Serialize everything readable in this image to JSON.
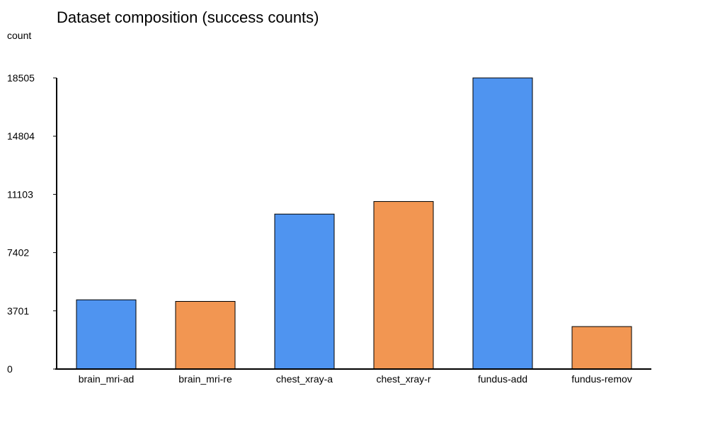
{
  "chart_data": {
    "type": "bar",
    "title": "Dataset composition (success counts)",
    "ylabel": "count",
    "xlabel": "",
    "categories": [
      "brain_mri-ad",
      "brain_mri-re",
      "chest_xray-a",
      "chest_xray-r",
      "fundus-add",
      "fundus-remov"
    ],
    "values": [
      4400,
      4300,
      9850,
      10650,
      18505,
      2700
    ],
    "bar_colors": [
      "#4f94f0",
      "#f29652",
      "#4f94f0",
      "#f29652",
      "#4f94f0",
      "#f29652"
    ],
    "ylim": [
      0,
      18505
    ],
    "yticks": [
      0,
      3701,
      7402,
      11103,
      14804,
      18505
    ],
    "ytick_labels": [
      "0",
      "3701",
      "7402",
      "11103",
      "14804",
      "18505"
    ],
    "grid": false,
    "legend": "none"
  }
}
